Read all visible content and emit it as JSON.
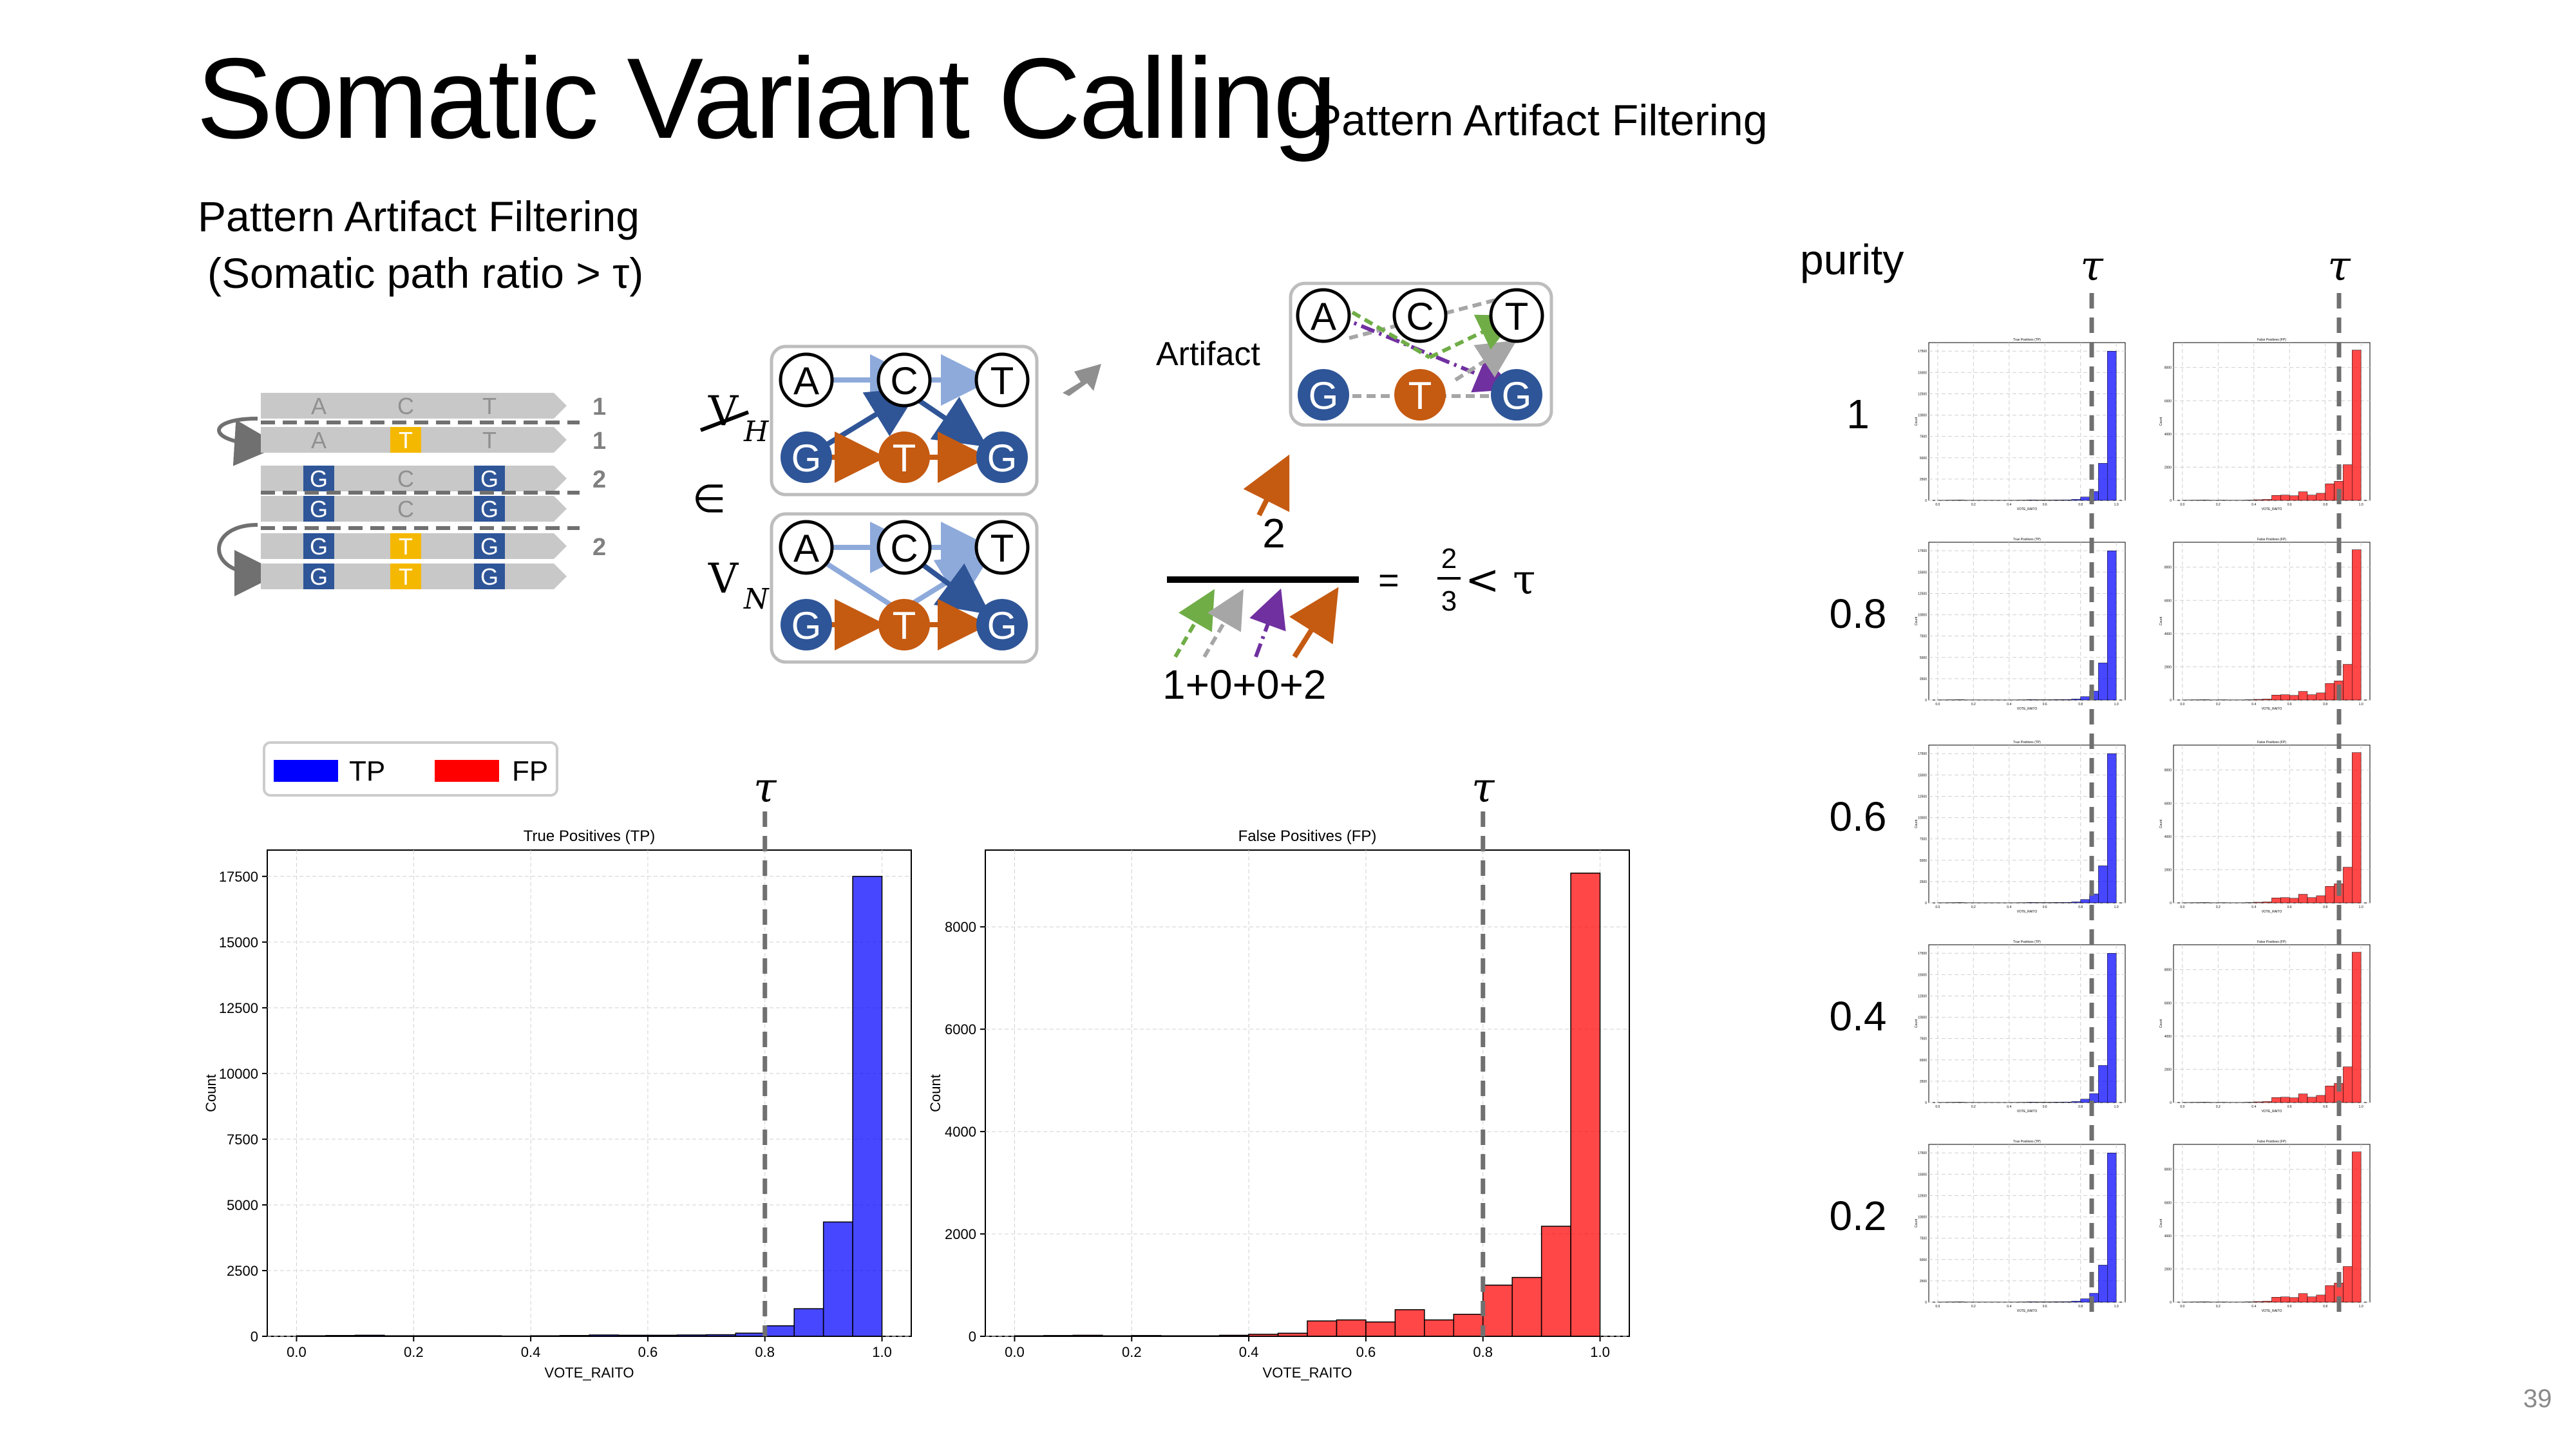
{
  "header": {
    "title": "Somatic Variant Calling",
    "subtitle": ": Pattern Artifact Filtering"
  },
  "section": {
    "title": "Pattern Artifact Filtering",
    "subtitle": "(Somatic path ratio > τ)"
  },
  "reads": {
    "rows": [
      {
        "bases": [
          "A",
          "C",
          "T"
        ],
        "highlight": [
          false,
          false,
          false
        ],
        "count": "1"
      },
      {
        "bases": [
          "A",
          "T",
          "T"
        ],
        "highlight": [
          false,
          true,
          false
        ],
        "count": "1"
      },
      {
        "bases": [
          "G",
          "C",
          "G"
        ],
        "highlight": [
          true,
          false,
          true
        ],
        "count": "2"
      },
      {
        "bases": [
          "G",
          "C",
          "G"
        ],
        "highlight": [
          true,
          false,
          true
        ],
        "count": ""
      },
      {
        "bases": [
          "G",
          "T",
          "G"
        ],
        "highlight": [
          true,
          true,
          true
        ],
        "count": "2"
      },
      {
        "bases": [
          "G",
          "T",
          "G"
        ],
        "highlight": [
          true,
          true,
          true
        ],
        "count": ""
      }
    ],
    "colors": {
      "read_bar": "#c8c8c8",
      "normal_base": "#909090",
      "variant_base": "#f5b800",
      "blue_base": "#2e5597"
    }
  },
  "graph": {
    "vh_label": "V",
    "vh_sub": "H",
    "vn_label": "V",
    "vn_sub": "N",
    "element_of": "∈",
    "top_nodes": [
      "A",
      "C",
      "T"
    ],
    "bottom_nodes": [
      "G",
      "T",
      "G"
    ],
    "artifact_label": "Artifact",
    "artifact_top": [
      "A",
      "C",
      "T"
    ],
    "artifact_bottom": [
      "G",
      "T",
      "G"
    ],
    "colors": {
      "blue_node": "#2e5597",
      "orange_node": "#c55a11",
      "light_edge": "#8eaadb",
      "dark_edge": "#2f5597"
    }
  },
  "formula": {
    "numerator": "2",
    "denominator": "1+0+0+2",
    "equals": "=",
    "frac_num": "2",
    "frac_den": "3",
    "compare": "< τ"
  },
  "legend": {
    "tp": "TP",
    "fp": "FP"
  },
  "tau": "τ",
  "purity": {
    "header": "purity",
    "levels": [
      "1",
      "0.8",
      "0.6",
      "0.4",
      "0.2"
    ]
  },
  "chart_data": [
    {
      "type": "bar",
      "title": "True Positives (TP)",
      "xlabel": "VOTE_RAITO",
      "ylabel": "Count",
      "xlim": [
        -0.05,
        1.05
      ],
      "ylim": [
        0,
        18500
      ],
      "xticks": [
        "0.0",
        "0.2",
        "0.4",
        "0.6",
        "0.8",
        "1.0"
      ],
      "yticks": [
        "0",
        "2500",
        "5000",
        "7500",
        "10000",
        "12500",
        "15000",
        "17500"
      ],
      "bins": [
        0.0,
        0.05,
        0.1,
        0.15,
        0.2,
        0.25,
        0.3,
        0.35,
        0.4,
        0.45,
        0.5,
        0.55,
        0.6,
        0.65,
        0.7,
        0.75,
        0.8,
        0.85,
        0.9,
        0.95
      ],
      "values": [
        20,
        30,
        40,
        20,
        20,
        20,
        20,
        10,
        20,
        30,
        50,
        40,
        40,
        50,
        60,
        120,
        400,
        1050,
        4350,
        17500
      ],
      "threshold": 0.8,
      "color": "#0000ff"
    },
    {
      "type": "bar",
      "title": "False Positives (FP)",
      "xlabel": "VOTE_RAITO",
      "ylabel": "Count",
      "xlim": [
        -0.05,
        1.05
      ],
      "ylim": [
        0,
        9500
      ],
      "xticks": [
        "0.0",
        "0.2",
        "0.4",
        "0.6",
        "0.8",
        "1.0"
      ],
      "yticks": [
        "0",
        "2000",
        "4000",
        "6000",
        "8000"
      ],
      "bins": [
        0.0,
        0.05,
        0.1,
        0.15,
        0.2,
        0.25,
        0.3,
        0.35,
        0.4,
        0.45,
        0.5,
        0.55,
        0.6,
        0.65,
        0.7,
        0.75,
        0.8,
        0.85,
        0.9,
        0.95
      ],
      "values": [
        10,
        15,
        20,
        10,
        15,
        10,
        10,
        20,
        40,
        60,
        300,
        320,
        280,
        520,
        320,
        430,
        1000,
        1150,
        2150,
        9050
      ],
      "threshold": 0.8,
      "color": "#ff0000"
    }
  ]
}
